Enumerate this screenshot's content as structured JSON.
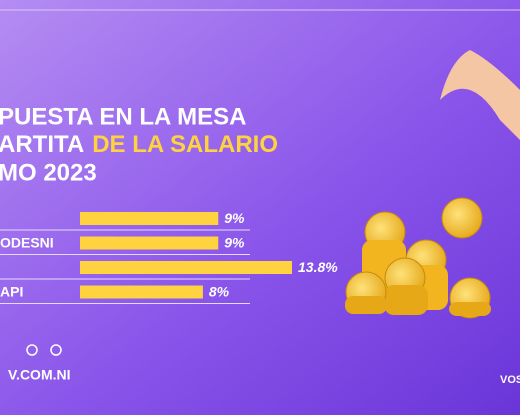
{
  "chart_data": {
    "type": "bar",
    "orientation": "horizontal",
    "title": {
      "line1": "PUESTA EN LA MESA",
      "line2": "ARTITA",
      "line2_highlight": "DE LA SALARIO",
      "line3": "MO 2023"
    },
    "categories": [
      null,
      "ODESNI",
      null,
      "API"
    ],
    "values": [
      9,
      9,
      13.8,
      8
    ],
    "value_labels": [
      "9%",
      "9%",
      "13.8%",
      "8%"
    ],
    "color": "#ffd23f",
    "footer": "V.COM.NI",
    "logo": "VOS"
  }
}
